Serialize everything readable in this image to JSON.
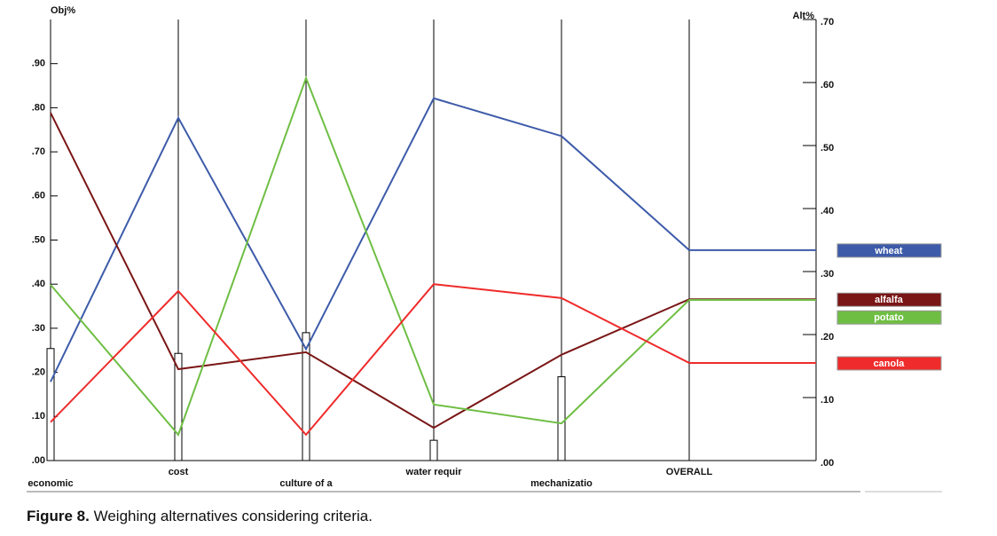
{
  "chart_data": {
    "type": "line",
    "ylabel": "Obj%",
    "y2label": "Alt%",
    "categories": [
      "economic",
      "cost",
      "culture of a",
      "water requir",
      "mechanizatio",
      "OVERALL"
    ],
    "criteria_weights": [
      0.254,
      0.243,
      0.29,
      0.046,
      0.19,
      null
    ],
    "ylim": [
      0,
      1.0
    ],
    "yticks": [
      {
        "value": 0,
        "label": ".00"
      },
      {
        "value": 0.1,
        "label": ".10"
      },
      {
        "value": 0.2,
        "label": ".20"
      },
      {
        "value": 0.3,
        "label": ".30"
      },
      {
        "value": 0.4,
        "label": ".40"
      },
      {
        "value": 0.5,
        "label": ".50"
      },
      {
        "value": 0.6,
        "label": ".60"
      },
      {
        "value": 0.7,
        "label": ".70"
      },
      {
        "value": 0.8,
        "label": ".80"
      },
      {
        "value": 0.9,
        "label": ".90"
      }
    ],
    "y2lim": [
      0,
      0.7
    ],
    "y2ticks": [
      {
        "value": 0,
        "label": ".00"
      },
      {
        "value": 0.1,
        "label": ".10"
      },
      {
        "value": 0.2,
        "label": ".20"
      },
      {
        "value": 0.3,
        "label": ".30"
      },
      {
        "value": 0.4,
        "label": ".40"
      },
      {
        "value": 0.5,
        "label": ".50"
      },
      {
        "value": 0.6,
        "label": ".60"
      },
      {
        "value": 0.7,
        "label": ".70"
      }
    ],
    "series": [
      {
        "name": "wheat",
        "color": "#3d5ba9",
        "axis": "y2",
        "values": [
          0.125,
          0.544,
          0.177,
          0.575,
          0.515,
          0.334
        ]
      },
      {
        "name": "alfalfa",
        "color": "#7a1616",
        "axis": "y2",
        "values": [
          0.552,
          0.145,
          0.172,
          0.052,
          0.168,
          0.256
        ]
      },
      {
        "name": "potato",
        "color": "#6fbe44",
        "axis": "y2",
        "values": [
          0.279,
          0.041,
          0.607,
          0.089,
          0.059,
          0.255
        ]
      },
      {
        "name": "canola",
        "color": "#ef2b2b",
        "axis": "y2",
        "values": [
          0.061,
          0.269,
          0.041,
          0.28,
          0.258,
          0.155
        ]
      }
    ]
  },
  "caption": {
    "label": "Figure 8.",
    "text": "Weighing alternatives considering criteria."
  }
}
